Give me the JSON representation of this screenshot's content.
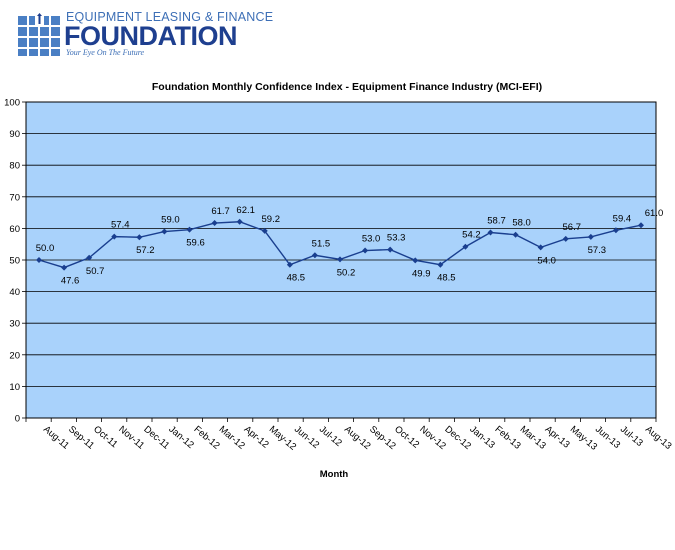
{
  "logo": {
    "line1": "EQUIPMENT LEASING & FINANCE",
    "line2": "FOUNDATION",
    "tagline": "Your Eye On The Future"
  },
  "chart_data": {
    "type": "line",
    "title": "Foundation Monthly Confidence Index - Equipment Finance Industry (MCI-EFI)",
    "xlabel": "Month",
    "ylabel": "",
    "ylim": [
      0,
      100
    ],
    "yticks": [
      0,
      10,
      20,
      30,
      40,
      50,
      60,
      70,
      80,
      90,
      100
    ],
    "grid": true,
    "legend": "none",
    "categories": [
      "Aug-11",
      "Sep-11",
      "Oct-11",
      "Nov-11",
      "Dec-11",
      "Jan-12",
      "Feb-12",
      "Mar-12",
      "Apr-12",
      "May-12",
      "Jun-12",
      "Jul-12",
      "Aug-12",
      "Sep-12",
      "Oct-12",
      "Nov-12",
      "Dec-12",
      "Jan-13",
      "Feb-13",
      "Mar-13",
      "Apr-13",
      "May-13",
      "Jun-13",
      "Jul-13",
      "Aug-13"
    ],
    "series": [
      {
        "values": [
          50.0,
          47.6,
          50.7,
          57.4,
          57.2,
          59.0,
          59.6,
          61.7,
          62.1,
          59.2,
          48.5,
          51.5,
          50.2,
          53.0,
          53.3,
          49.9,
          48.5,
          54.2,
          58.7,
          58.0,
          54.0,
          56.7,
          57.3,
          59.4,
          61.0
        ],
        "labels": [
          "50.0",
          "47.6",
          "50.7",
          "57.4",
          "57.2",
          "59.0",
          "59.6",
          "61.7",
          "62.1",
          "59.2",
          "48.5",
          "51.5",
          "50.2",
          "53.0",
          "53.3",
          "49.9",
          "48.5",
          "54.2",
          "58.7",
          "58.0",
          "54.0",
          "56.7",
          "57.3",
          "59.4",
          "61.0"
        ],
        "color": "#1a3f8f"
      }
    ],
    "colors": {
      "plot_bg": "#a9d2fb",
      "grid": "#000000",
      "line": "#1a3f8f"
    }
  }
}
